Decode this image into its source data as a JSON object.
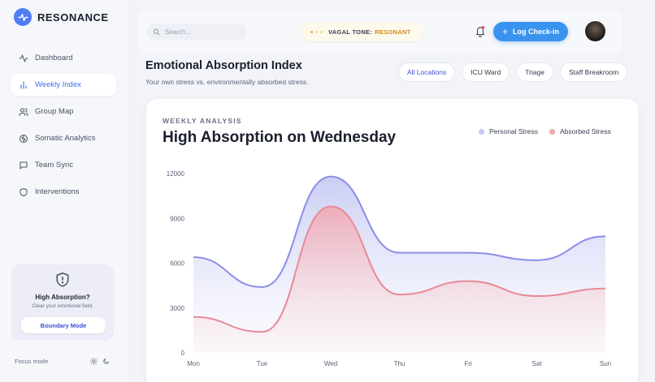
{
  "app": {
    "name": "RESONANCE"
  },
  "sidebar": {
    "items": [
      {
        "label": "Dashboard",
        "icon": "activity-icon"
      },
      {
        "label": "Weekly Index",
        "icon": "bar-chart-icon",
        "active": true
      },
      {
        "label": "Group Map",
        "icon": "users-icon"
      },
      {
        "label": "Somatic Analytics",
        "icon": "brain-icon"
      },
      {
        "label": "Team Sync",
        "icon": "message-icon"
      },
      {
        "label": "Interventions",
        "icon": "shield-icon"
      }
    ],
    "help_card": {
      "title": "High Absorption?",
      "subtitle": "Clear your emotional field.",
      "button": "Boundary Mode"
    },
    "focus_mode_label": "Focus mode"
  },
  "topbar": {
    "search_placeholder": "Search...",
    "vagal_label": "VAGAL TONE:",
    "vagal_value": "RESONANT",
    "checkin_label": "Log Check-in"
  },
  "header": {
    "title": "Emotional Absorption Index",
    "subtitle": "Your own stress vs. environmentally absorbed stress.",
    "filters": [
      "All Locations",
      "ICU Ward",
      "Triage",
      "Staff Breakroom"
    ],
    "active_filter": "All Locations"
  },
  "card": {
    "eyebrow": "WEEKLY ANALYSIS",
    "title": "High Absorption on Wednesday"
  },
  "colors": {
    "accent": "#3f6ff0",
    "personal": "#8a8ee6",
    "absorbed": "#e88a96",
    "checkin": "#3a93ee",
    "vagal": "#d08a17"
  },
  "chart_data": {
    "type": "area",
    "categories": [
      "Mon",
      "Tue",
      "Wed",
      "Thu",
      "Fri",
      "Sat",
      "Sun"
    ],
    "series": [
      {
        "name": "Personal Stress",
        "values": [
          6400,
          4400,
          11800,
          6700,
          6700,
          6200,
          7800
        ]
      },
      {
        "name": "Absorbed Stress",
        "values": [
          2400,
          1400,
          9800,
          3900,
          4800,
          3800,
          4300
        ]
      }
    ],
    "ylim": [
      0,
      12000
    ],
    "yticks": [
      "0",
      "3000",
      "6000",
      "9000",
      "12000"
    ],
    "legend_position": "top-right",
    "grid": false
  }
}
